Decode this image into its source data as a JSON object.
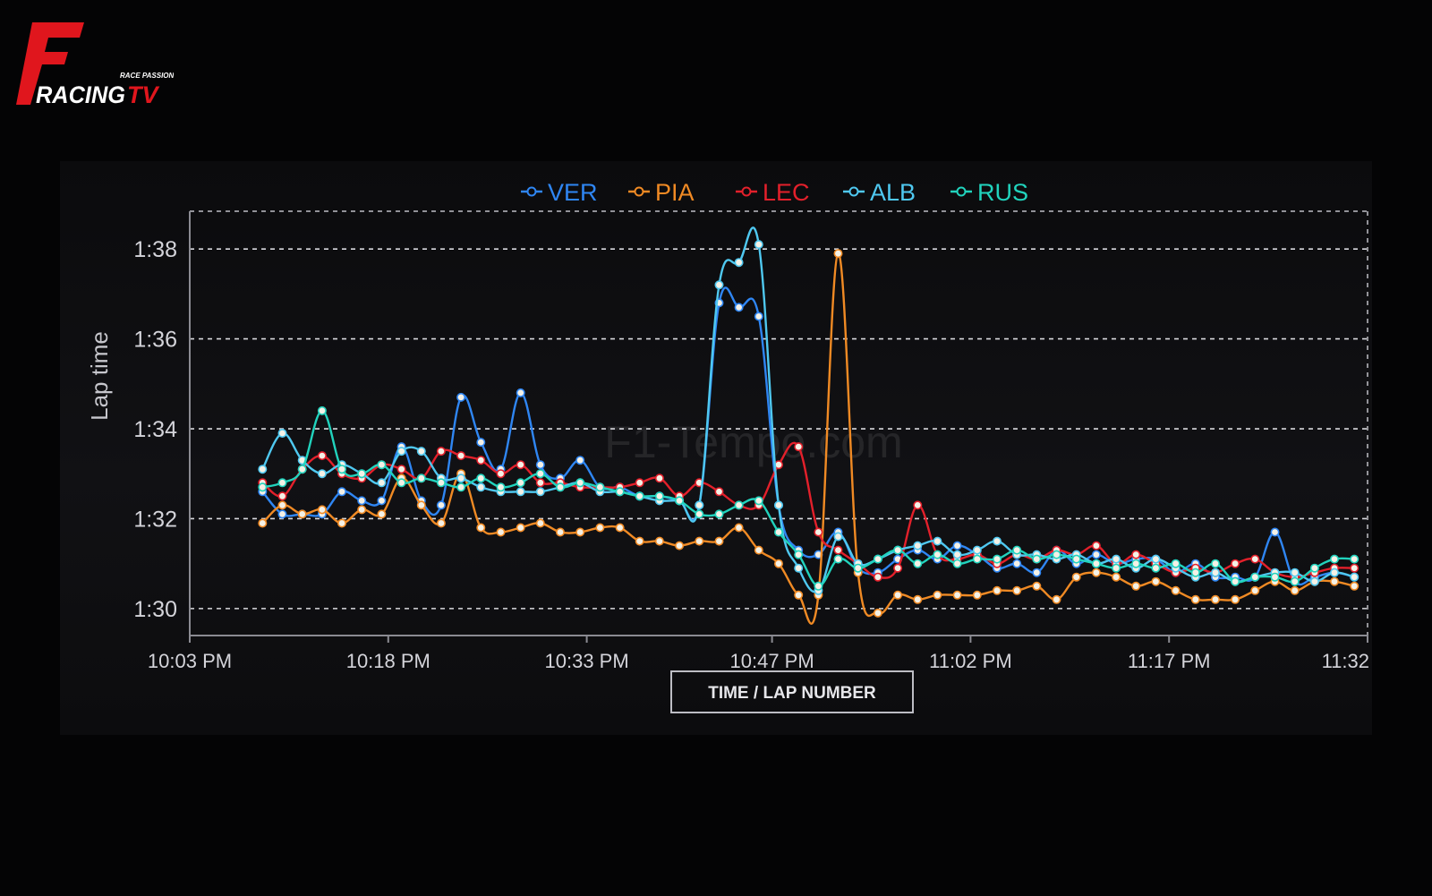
{
  "logo": {
    "letter": "F",
    "word_main": "RACING",
    "word_accent": "TV",
    "tagline": "RACE PASSION",
    "color_red": "#e0161d",
    "color_white": "#ffffff"
  },
  "watermark": "F1-Tempo.com",
  "chart_data": {
    "type": "line",
    "ylabel": "Lap time",
    "xlabel": "TIME / LAP NUMBER",
    "x_tick_labels": [
      "10:03 PM",
      "10:18 PM",
      "10:33 PM",
      "10:47 PM",
      "11:02 PM",
      "11:17 PM",
      "11:32"
    ],
    "x_tick_minutes": [
      0,
      15,
      30,
      44,
      59,
      74,
      89
    ],
    "xlim_minutes": [
      0,
      89
    ],
    "y_tick_labels": [
      "1:30",
      "1:32",
      "1:34",
      "1:36",
      "1:38"
    ],
    "y_tick_values": [
      90,
      92,
      94,
      96,
      98
    ],
    "ylim_seconds": [
      89.4,
      98.8
    ],
    "grid": "dashed horizontal",
    "legend_position": "top-center",
    "series": [
      {
        "name": "VER",
        "color": "#2f86f3",
        "x": [
          5.5,
          7,
          8.5,
          10,
          11.5,
          13,
          14.5,
          16,
          17.5,
          19,
          20.5,
          22,
          23.5,
          25,
          26.5,
          28,
          29.5,
          31,
          32.5,
          34,
          35.5,
          37,
          38.5,
          40,
          41.5,
          43,
          44.5,
          46,
          47.5,
          49,
          50.5,
          52,
          53.5,
          55,
          56.5,
          58,
          59.5,
          61,
          62.5,
          64,
          65.5,
          67,
          68.5,
          70,
          71.5,
          73,
          74.5,
          76,
          77.5,
          79,
          80.5,
          82,
          83.5,
          85,
          86.5,
          88
        ],
        "y": [
          92.6,
          92.1,
          92.1,
          92.1,
          92.6,
          92.4,
          92.4,
          93.6,
          92.4,
          92.3,
          94.7,
          93.7,
          93.1,
          94.8,
          93.2,
          92.9,
          93.3,
          92.7,
          92.7,
          92.5,
          92.5,
          92.4,
          92.3,
          96.8,
          96.7,
          96.5,
          92.3,
          91.3,
          91.2,
          91.7,
          90.9,
          90.8,
          91.1,
          91.3,
          91.1,
          91.4,
          91.2,
          90.9,
          91.0,
          90.8,
          91.3,
          91.0,
          91.2,
          91.0,
          91.1,
          91.1,
          90.8,
          91.0,
          90.7,
          90.7,
          90.7,
          91.7,
          90.6,
          90.7,
          90.8,
          90.7
        ]
      },
      {
        "name": "PIA",
        "color": "#f08a24",
        "x": [
          5.5,
          7,
          8.5,
          10,
          11.5,
          13,
          14.5,
          16,
          17.5,
          19,
          20.5,
          22,
          23.5,
          25,
          26.5,
          28,
          29.5,
          31,
          32.5,
          34,
          35.5,
          37,
          38.5,
          40,
          41.5,
          43,
          44.5,
          46,
          47.5,
          49,
          50.5,
          52,
          53.5,
          55,
          56.5,
          58,
          59.5,
          61,
          62.5,
          64,
          65.5,
          67,
          68.5,
          70,
          71.5,
          73,
          74.5,
          76,
          77.5,
          79,
          80.5,
          82,
          83.5,
          85,
          86.5,
          88
        ],
        "y": [
          91.9,
          92.3,
          92.1,
          92.2,
          91.9,
          92.2,
          92.1,
          92.9,
          92.3,
          91.9,
          93.0,
          91.8,
          91.7,
          91.8,
          91.9,
          91.7,
          91.7,
          91.8,
          91.8,
          91.5,
          91.5,
          91.4,
          91.5,
          91.5,
          91.8,
          91.3,
          91.0,
          90.3,
          90.3,
          97.9,
          90.8,
          89.9,
          90.3,
          90.2,
          90.3,
          90.3,
          90.3,
          90.4,
          90.4,
          90.5,
          90.2,
          90.7,
          90.8,
          90.7,
          90.5,
          90.6,
          90.4,
          90.2,
          90.2,
          90.2,
          90.4,
          90.6,
          90.4,
          90.6,
          90.6,
          90.5
        ]
      },
      {
        "name": "LEC",
        "color": "#e3202b",
        "x": [
          5.5,
          7,
          8.5,
          10,
          11.5,
          13,
          14.5,
          16,
          17.5,
          19,
          20.5,
          22,
          23.5,
          25,
          26.5,
          28,
          29.5,
          31,
          32.5,
          34,
          35.5,
          37,
          38.5,
          40,
          41.5,
          43,
          44.5,
          46,
          47.5,
          49,
          50.5,
          52,
          53.5,
          55,
          56.5,
          58,
          59.5,
          61,
          62.5,
          64,
          65.5,
          67,
          68.5,
          70,
          71.5,
          73,
          74.5,
          76,
          77.5,
          79,
          80.5,
          82,
          83.5,
          85,
          86.5,
          88
        ],
        "y": [
          92.8,
          92.5,
          93.1,
          93.4,
          93.0,
          92.9,
          93.2,
          93.1,
          92.9,
          93.5,
          93.4,
          93.3,
          93.0,
          93.2,
          92.8,
          92.8,
          92.7,
          92.7,
          92.7,
          92.8,
          92.9,
          92.5,
          92.8,
          92.6,
          92.3,
          92.3,
          93.2,
          93.6,
          91.7,
          91.3,
          91.0,
          90.7,
          90.9,
          92.3,
          91.2,
          91.1,
          91.2,
          91.0,
          91.2,
          91.1,
          91.3,
          91.2,
          91.4,
          91.0,
          91.2,
          91.0,
          90.8,
          90.9,
          90.8,
          91.0,
          91.1,
          90.8,
          90.7,
          90.8,
          90.9,
          90.9
        ]
      },
      {
        "name": "ALB",
        "color": "#4fc8f0",
        "x": [
          5.5,
          7,
          8.5,
          10,
          11.5,
          13,
          14.5,
          16,
          17.5,
          19,
          20.5,
          22,
          23.5,
          25,
          26.5,
          28,
          29.5,
          31,
          32.5,
          34,
          35.5,
          37,
          38.5,
          40,
          41.5,
          43,
          44.5,
          46,
          47.5,
          49,
          50.5,
          52,
          53.5,
          55,
          56.5,
          58,
          59.5,
          61,
          62.5,
          64,
          65.5,
          67,
          68.5,
          70,
          71.5,
          73,
          74.5,
          76,
          77.5,
          79,
          80.5,
          82,
          83.5,
          85,
          86.5,
          88
        ],
        "y": [
          93.1,
          93.9,
          93.3,
          93.0,
          93.2,
          93.0,
          92.8,
          93.5,
          93.5,
          92.9,
          92.9,
          92.7,
          92.6,
          92.6,
          92.6,
          92.7,
          92.8,
          92.6,
          92.6,
          92.5,
          92.4,
          92.4,
          92.3,
          97.2,
          97.7,
          98.1,
          92.3,
          90.9,
          90.4,
          91.6,
          91.0,
          91.1,
          91.3,
          91.4,
          91.5,
          91.2,
          91.3,
          91.5,
          91.2,
          91.2,
          91.1,
          91.2,
          91.0,
          91.1,
          90.9,
          91.1,
          90.9,
          90.7,
          90.8,
          90.6,
          90.7,
          90.8,
          90.8,
          90.6,
          90.8,
          90.7
        ]
      },
      {
        "name": "RUS",
        "color": "#21d3bd",
        "x": [
          5.5,
          7,
          8.5,
          10,
          11.5,
          13,
          14.5,
          16,
          17.5,
          19,
          20.5,
          22,
          23.5,
          25,
          26.5,
          28,
          29.5,
          31,
          32.5,
          34,
          35.5,
          37,
          38.5,
          40,
          41.5,
          43,
          44.5,
          46,
          47.5,
          49,
          50.5,
          52,
          53.5,
          55,
          56.5,
          58,
          59.5,
          61,
          62.5,
          64,
          65.5,
          67,
          68.5,
          70,
          71.5,
          73,
          74.5,
          76,
          77.5,
          79,
          80.5,
          82,
          83.5,
          85,
          86.5,
          88
        ],
        "y": [
          92.7,
          92.8,
          93.1,
          94.4,
          93.1,
          93.0,
          93.2,
          92.8,
          92.9,
          92.8,
          92.7,
          92.9,
          92.7,
          92.8,
          93.0,
          92.7,
          92.8,
          92.7,
          92.6,
          92.5,
          92.5,
          92.4,
          92.1,
          92.1,
          92.3,
          92.4,
          91.7,
          91.2,
          90.5,
          91.1,
          90.9,
          91.1,
          91.3,
          91.0,
          91.2,
          91.0,
          91.1,
          91.1,
          91.3,
          91.1,
          91.2,
          91.1,
          91.0,
          90.9,
          91.0,
          90.9,
          91.0,
          90.8,
          91.0,
          90.6,
          90.7,
          90.7,
          90.6,
          90.9,
          91.1,
          91.1
        ]
      }
    ]
  }
}
